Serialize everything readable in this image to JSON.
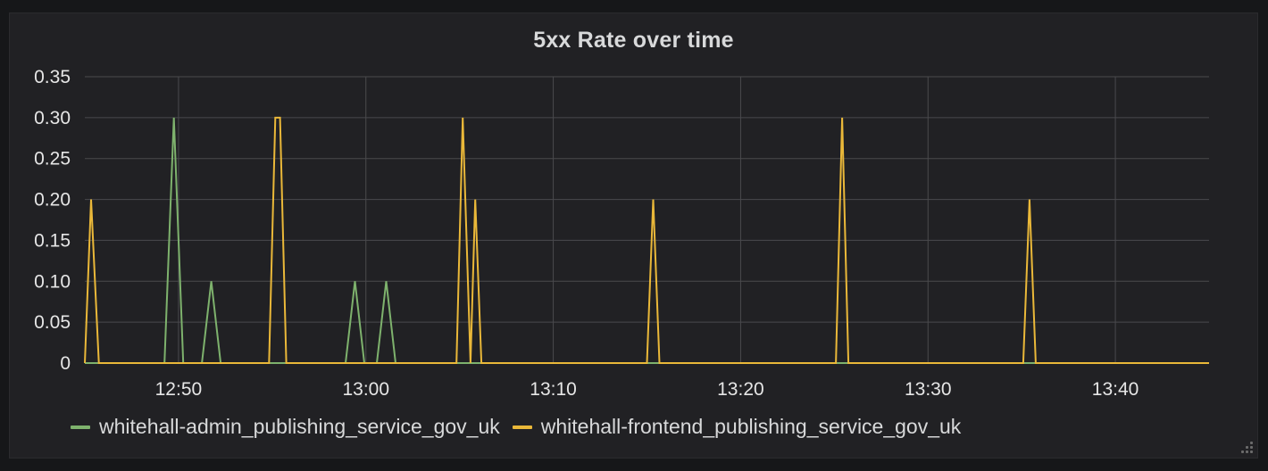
{
  "panel": {
    "title": "5xx Rate over time"
  },
  "colors": {
    "background": "#161719",
    "panel": "#212124",
    "grid": "#4a4a4d",
    "text": "#e6e6e6"
  },
  "chart_data": {
    "type": "line",
    "title": "5xx Rate over time",
    "xlabel": "",
    "ylabel": "",
    "x_unit": "time (HH:MM)",
    "xlim": [
      "12:45:00",
      "13:45:00"
    ],
    "ylim": [
      0,
      0.35
    ],
    "yticks": [
      "0",
      "0.05",
      "0.10",
      "0.15",
      "0.20",
      "0.25",
      "0.30",
      "0.35"
    ],
    "ytick_values": [
      0,
      0.05,
      0.1,
      0.15,
      0.2,
      0.25,
      0.3,
      0.35
    ],
    "xticks": [
      "12:50",
      "13:00",
      "13:10",
      "13:20",
      "13:30",
      "13:40"
    ],
    "grid": true,
    "legend_position": "bottom-left",
    "series": [
      {
        "name": "whitehall-admin_publishing_service_gov_uk",
        "color": "#7eb26d",
        "points": [
          [
            "12:45:00",
            0
          ],
          [
            "12:49:15",
            0
          ],
          [
            "12:49:45",
            0.3
          ],
          [
            "12:50:15",
            0
          ],
          [
            "12:51:15",
            0
          ],
          [
            "12:51:45",
            0.1
          ],
          [
            "12:52:15",
            0
          ],
          [
            "12:58:55",
            0
          ],
          [
            "12:59:25",
            0.1
          ],
          [
            "12:59:55",
            0
          ],
          [
            "13:00:35",
            0
          ],
          [
            "13:01:05",
            0.1
          ],
          [
            "13:01:35",
            0
          ],
          [
            "13:45:00",
            0
          ]
        ]
      },
      {
        "name": "whitehall-frontend_publishing_service_gov_uk",
        "color": "#eab839",
        "points": [
          [
            "12:45:00",
            0
          ],
          [
            "12:45:20",
            0.2
          ],
          [
            "12:45:45",
            0
          ],
          [
            "12:54:50",
            0
          ],
          [
            "12:55:10",
            0.3
          ],
          [
            "12:55:25",
            0.3
          ],
          [
            "12:55:45",
            0
          ],
          [
            "13:04:50",
            0
          ],
          [
            "13:05:10",
            0.3
          ],
          [
            "13:05:35",
            0
          ],
          [
            "13:05:50",
            0.2
          ],
          [
            "13:06:10",
            0
          ],
          [
            "13:15:00",
            0
          ],
          [
            "13:15:20",
            0.2
          ],
          [
            "13:15:40",
            0
          ],
          [
            "13:25:05",
            0
          ],
          [
            "13:25:25",
            0.3
          ],
          [
            "13:25:45",
            0
          ],
          [
            "13:35:05",
            0
          ],
          [
            "13:35:25",
            0.2
          ],
          [
            "13:35:45",
            0
          ],
          [
            "13:45:00",
            0
          ]
        ]
      }
    ]
  }
}
